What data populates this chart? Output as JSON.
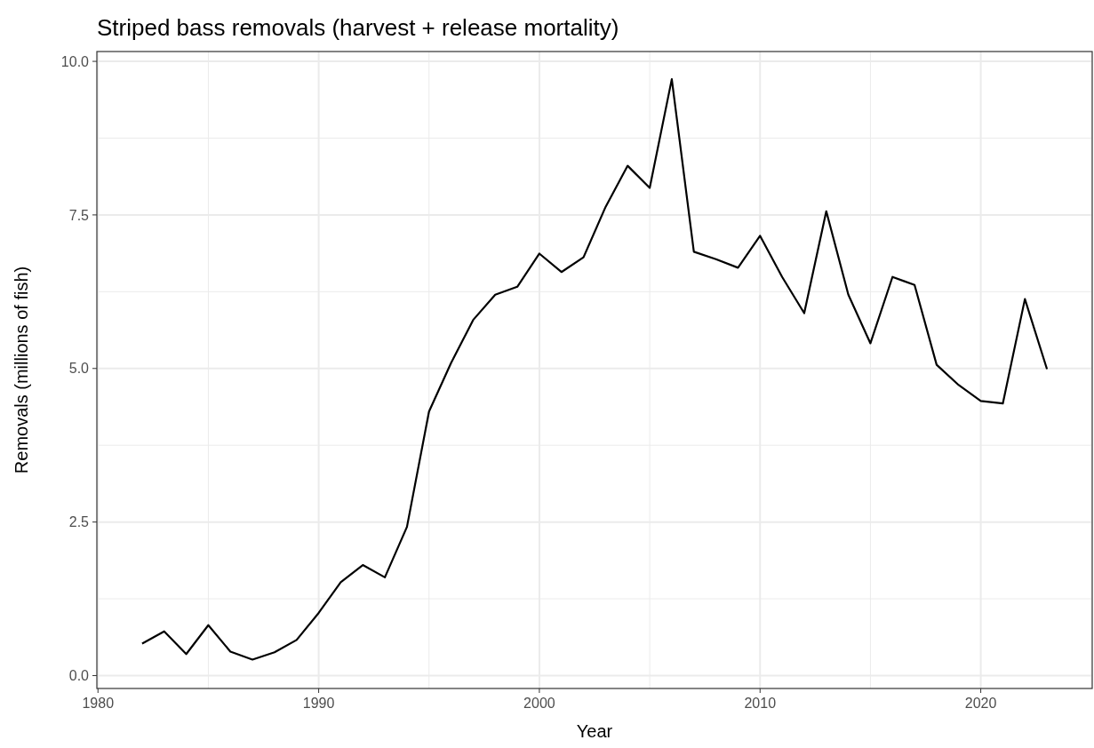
{
  "chart_data": {
    "type": "line",
    "title": "Striped bass removals (harvest + release mortality)",
    "xlabel": "Year",
    "ylabel": "Removals (millions of fish)",
    "x": [
      1982,
      1983,
      1984,
      1985,
      1986,
      1987,
      1988,
      1989,
      1990,
      1991,
      1992,
      1993,
      1994,
      1995,
      1996,
      1997,
      1998,
      1999,
      2000,
      2001,
      2002,
      2003,
      2004,
      2005,
      2006,
      2007,
      2008,
      2009,
      2010,
      2011,
      2012,
      2013,
      2014,
      2015,
      2016,
      2017,
      2018,
      2019,
      2020,
      2021,
      2022,
      2023
    ],
    "series": [
      {
        "color": "#000000",
        "values": [
          0.52,
          0.72,
          0.35,
          0.82,
          0.39,
          0.26,
          0.38,
          0.58,
          1.02,
          1.52,
          1.8,
          1.6,
          2.42,
          4.3,
          5.09,
          5.79,
          6.2,
          6.33,
          6.87,
          6.57,
          6.81,
          7.63,
          8.3,
          7.94,
          9.71,
          6.9,
          6.78,
          6.64,
          7.16,
          6.49,
          5.9,
          7.56,
          6.2,
          5.41,
          6.49,
          6.36,
          5.06,
          4.73,
          4.47,
          4.43,
          6.13,
          4.99
        ]
      }
    ],
    "xlim": [
      1979.95,
      2025.05
    ],
    "xticks": [
      1980,
      1990,
      2000,
      2010,
      2020
    ],
    "ylim": [
      -0.21,
      10.16
    ],
    "yticks": [
      {
        "value": 0,
        "label": "0.0"
      },
      {
        "value": 2.5,
        "label": "2.5"
      },
      {
        "value": 5,
        "label": "5.0"
      },
      {
        "value": 7.5,
        "label": "7.5"
      },
      {
        "value": 10,
        "label": "10.0"
      }
    ],
    "grid": true,
    "marker": "none",
    "line_style": "solid"
  }
}
